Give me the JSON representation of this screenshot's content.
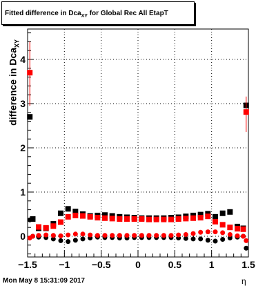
{
  "title": {
    "prefix": "Fitted difference in Dca",
    "sub": "XY",
    "suffix": " for Global Rec All EtapT"
  },
  "timestamp": "Mon May  8 15:31:09 2017",
  "chart_data": {
    "type": "scatter",
    "xlabel": "η",
    "ylabel": {
      "main": "difference in Dca",
      "sub": "XY"
    },
    "xlim": [
      -1.5,
      1.5
    ],
    "ylim": [
      -0.45,
      4.7
    ],
    "xticks": [
      -1.5,
      -1,
      -0.5,
      0,
      0.5,
      1,
      1.5
    ],
    "xtick_labels": [
      "−1.5",
      "−1",
      "−0.5",
      "0",
      "0.5",
      "1",
      "1.5"
    ],
    "yticks": [
      0,
      1,
      2,
      3,
      4
    ],
    "ytick_labels": [
      "0",
      "1",
      "2",
      "3",
      "4"
    ],
    "grid": true,
    "series": [
      {
        "color": "#000000",
        "marker": "square",
        "x": [
          -1.47,
          -1.43
        ],
        "y": [
          2.7,
          0.39
        ]
      },
      {
        "color": "#000000",
        "marker": "square",
        "x": [
          -1.35,
          -1.25,
          -1.15,
          -1.05,
          -0.95,
          -0.85,
          -0.75,
          -0.65,
          -0.55,
          -0.45,
          -0.35,
          -0.25,
          -0.15,
          -0.05,
          0.05,
          0.15,
          0.25,
          0.35,
          0.45,
          0.55,
          0.65,
          0.75,
          0.85,
          0.95,
          1.05,
          1.15,
          1.25,
          1.35,
          1.43
        ],
        "y": [
          0.18,
          0.18,
          0.28,
          0.52,
          0.62,
          0.56,
          0.5,
          0.46,
          0.47,
          0.48,
          0.46,
          0.44,
          0.43,
          0.42,
          0.41,
          0.41,
          0.41,
          0.41,
          0.42,
          0.43,
          0.45,
          0.47,
          0.49,
          0.51,
          0.44,
          0.52,
          0.55,
          0.22,
          0.18
        ]
      },
      {
        "color": "#000000",
        "marker": "square",
        "x": [
          1.47
        ],
        "y": [
          2.96
        ]
      },
      {
        "color": "#000000",
        "marker": "circle",
        "x": [
          -1.47,
          -1.43,
          -1.35,
          -1.25,
          -1.15,
          -1.05,
          -0.95,
          -0.85,
          -0.75,
          -0.65,
          -0.55,
          -0.45,
          -0.35,
          -0.25,
          -0.15,
          -0.05,
          0.05,
          0.15,
          0.25,
          0.35,
          0.45,
          0.55,
          0.65,
          0.75,
          0.85,
          0.95,
          1.05,
          1.15,
          1.25,
          1.35,
          1.43,
          1.47
        ],
        "y": [
          0.37,
          0.0,
          -0.02,
          -0.03,
          -0.06,
          -0.1,
          -0.12,
          -0.09,
          -0.06,
          -0.04,
          -0.02,
          -0.03,
          -0.03,
          -0.04,
          -0.04,
          -0.03,
          -0.03,
          -0.03,
          -0.03,
          -0.03,
          -0.03,
          -0.04,
          -0.05,
          -0.06,
          -0.06,
          -0.09,
          -0.11,
          -0.07,
          -0.04,
          -0.02,
          0.0,
          -0.27
        ]
      },
      {
        "color": "#ff0000",
        "marker": "square",
        "x": [
          -1.47,
          -1.35,
          -1.25,
          -1.15,
          -1.05,
          -0.95,
          -0.85,
          -0.75,
          -0.65,
          -0.55,
          -0.45,
          -0.35,
          -0.25,
          -0.15,
          -0.05,
          0.05,
          0.15,
          0.25,
          0.35,
          0.45,
          0.55,
          0.65,
          0.75,
          0.85,
          0.95,
          1.05,
          1.15,
          1.25,
          1.35,
          1.43,
          1.47
        ],
        "y": [
          3.7,
          0.21,
          0.19,
          0.23,
          0.32,
          0.44,
          0.47,
          0.46,
          0.44,
          0.42,
          0.41,
          0.4,
          0.39,
          0.39,
          0.39,
          0.39,
          0.38,
          0.38,
          0.38,
          0.38,
          0.39,
          0.4,
          0.41,
          0.42,
          0.45,
          0.33,
          0.26,
          0.2,
          0.17,
          0.16,
          2.81
        ],
        "yerr_low": [
          0.75,
          0,
          0,
          0,
          0,
          0,
          0,
          0,
          0,
          0,
          0,
          0,
          0,
          0,
          0,
          0,
          0,
          0,
          0,
          0,
          0,
          0,
          0,
          0,
          0,
          0,
          0,
          0,
          0,
          0,
          0.45
        ],
        "yerr_high": [
          0.7,
          0,
          0,
          0,
          0,
          0,
          0,
          0,
          0,
          0,
          0,
          0,
          0,
          0,
          0,
          0,
          0,
          0,
          0,
          0,
          0,
          0,
          0,
          0,
          0,
          0,
          0,
          0,
          0,
          0,
          0.35
        ]
      },
      {
        "color": "#ff0000",
        "marker": "circle",
        "x": [
          -1.47,
          -1.43,
          -1.35,
          -1.25,
          -1.15,
          -1.05,
          -0.95,
          -0.85,
          -0.75,
          -0.65,
          -0.55,
          -0.45,
          -0.35,
          -0.25,
          -0.15,
          -0.05,
          0.05,
          0.15,
          0.25,
          0.35,
          0.45,
          0.55,
          0.65,
          0.75,
          0.85,
          0.95,
          1.05,
          1.15,
          1.25,
          1.35,
          1.43,
          1.47
        ],
        "y": [
          -0.04,
          0.0,
          0.02,
          0.03,
          0.02,
          0.01,
          0.03,
          0.05,
          0.05,
          0.03,
          0.02,
          0.02,
          0.02,
          0.02,
          0.02,
          0.02,
          0.02,
          0.02,
          0.02,
          0.02,
          0.02,
          0.03,
          0.04,
          0.06,
          0.09,
          0.1,
          0.1,
          0.08,
          0.04,
          0.01,
          0.0,
          -0.1
        ]
      }
    ]
  }
}
